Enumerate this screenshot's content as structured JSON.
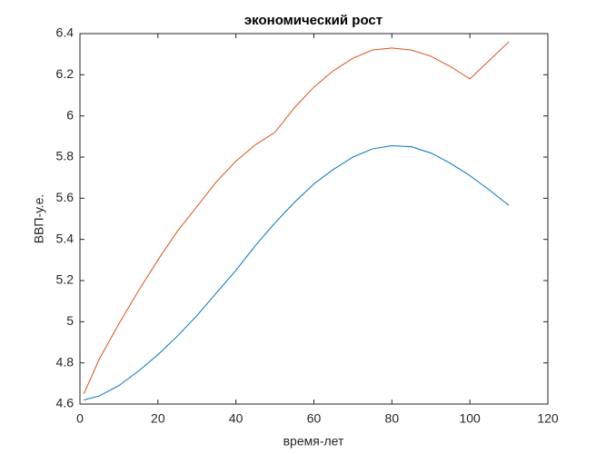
{
  "chart_data": {
    "type": "line",
    "title": "экономический рост",
    "x_label": "время-лет",
    "y_label": "ВВП-у.е.",
    "x": [
      1,
      5,
      10,
      15,
      20,
      25,
      30,
      35,
      40,
      45,
      50,
      55,
      60,
      65,
      70,
      75,
      80,
      85,
      90,
      95,
      100,
      105,
      110
    ],
    "series": [
      {
        "color": "#0072bd",
        "values": [
          4.62,
          4.64,
          4.69,
          4.76,
          4.84,
          4.93,
          5.03,
          5.14,
          5.25,
          5.37,
          5.48,
          5.58,
          5.67,
          5.74,
          5.8,
          5.84,
          5.855,
          5.85,
          5.82,
          5.77,
          5.71,
          5.64,
          5.565
        ]
      },
      {
        "color": "#d95319",
        "values": [
          4.65,
          4.82,
          4.99,
          5.15,
          5.3,
          5.44,
          5.56,
          5.68,
          5.78,
          5.86,
          5.92,
          6.04,
          6.14,
          6.22,
          6.28,
          6.32,
          6.33,
          6.32,
          6.29,
          6.24,
          6.18,
          6.27,
          6.36
        ]
      }
    ],
    "xlim": [
      0,
      120
    ],
    "xticks": [
      0,
      20,
      40,
      60,
      80,
      100,
      120
    ],
    "ylim": [
      4.6,
      6.4
    ],
    "yticks": [
      4.6,
      4.8,
      5,
      5.2,
      5.4,
      5.6,
      5.8,
      6,
      6.2,
      6.4
    ]
  }
}
